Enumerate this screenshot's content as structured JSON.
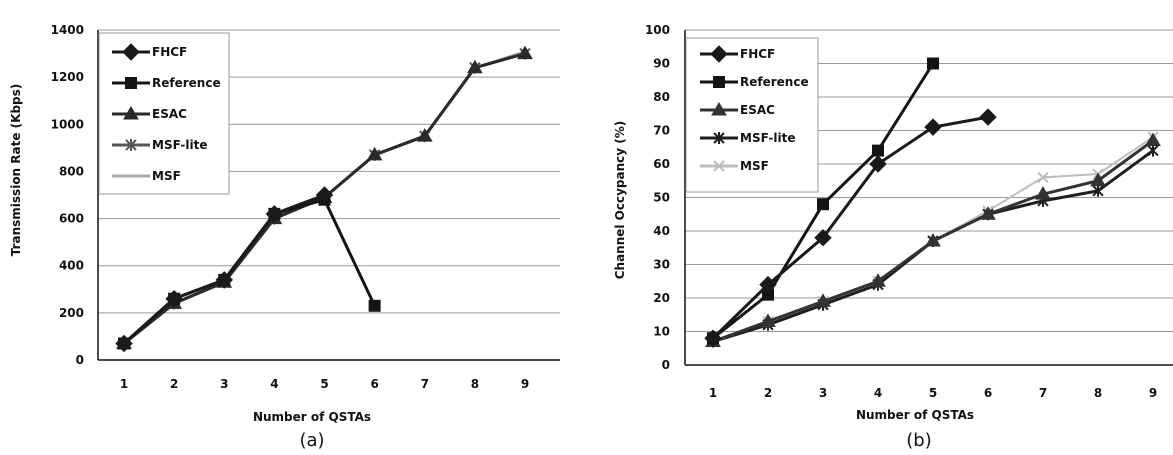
{
  "chart_data": [
    {
      "type": "line",
      "caption": "(a)",
      "xlabel": "Number of QSTAs",
      "ylabel": "Transmission Rate (Kbps)",
      "categories": [
        "1",
        "2",
        "3",
        "4",
        "5",
        "6",
        "7",
        "8",
        "9"
      ],
      "ylim": [
        0,
        1400
      ],
      "yticks": [
        0,
        200,
        400,
        600,
        800,
        1000,
        1200,
        1400
      ],
      "grid": true,
      "legend_position": "top-left",
      "series": [
        {
          "name": "FHCF",
          "values": [
            70,
            260,
            340,
            620,
            700,
            null,
            null,
            null,
            null
          ],
          "color": "#1a1a1a",
          "marker": "diamond"
        },
        {
          "name": "Reference",
          "values": [
            70,
            260,
            340,
            620,
            680,
            230,
            null,
            null,
            null
          ],
          "color": "#141414",
          "marker": "square"
        },
        {
          "name": "ESAC",
          "values": [
            70,
            240,
            330,
            600,
            690,
            870,
            950,
            1240,
            1300
          ],
          "color": "#2a2a2a",
          "marker": "triangle"
        },
        {
          "name": "MSF-lite",
          "values": [
            70,
            240,
            330,
            600,
            690,
            870,
            950,
            1240,
            1300
          ],
          "color": "#555555",
          "marker": "star"
        },
        {
          "name": "MSF",
          "values": [
            70,
            240,
            330,
            600,
            690,
            870,
            950,
            1240,
            1310
          ],
          "color": "#a8a8a8",
          "marker": "none"
        }
      ]
    },
    {
      "type": "line",
      "caption": "(b)",
      "xlabel": "Number of QSTAs",
      "ylabel": "Channel Occypancy (%)",
      "categories": [
        "1",
        "2",
        "3",
        "4",
        "5",
        "6",
        "7",
        "8",
        "9"
      ],
      "ylim": [
        0,
        100
      ],
      "yticks": [
        0,
        10,
        20,
        30,
        40,
        50,
        60,
        70,
        80,
        90,
        100
      ],
      "grid": true,
      "legend_position": "top-left",
      "series": [
        {
          "name": "FHCF",
          "values": [
            8,
            24,
            38,
            60,
            71,
            74,
            null,
            null,
            null
          ],
          "color": "#1a1a1a",
          "marker": "diamond"
        },
        {
          "name": "Reference",
          "values": [
            8,
            21,
            48,
            64,
            90,
            null,
            null,
            null,
            null
          ],
          "color": "#141414",
          "marker": "square"
        },
        {
          "name": "ESAC",
          "values": [
            7,
            13,
            19,
            25,
            37,
            45,
            51,
            55,
            67
          ],
          "color": "#333333",
          "marker": "triangle"
        },
        {
          "name": "MSF-lite",
          "values": [
            7,
            12,
            18,
            24,
            37,
            45,
            49,
            52,
            64
          ],
          "color": "#1e1e1e",
          "marker": "star"
        },
        {
          "name": "MSF",
          "values": [
            7,
            13,
            19,
            25,
            37,
            46,
            56,
            57,
            68
          ],
          "color": "#bdbdbd",
          "marker": "x"
        }
      ]
    }
  ]
}
